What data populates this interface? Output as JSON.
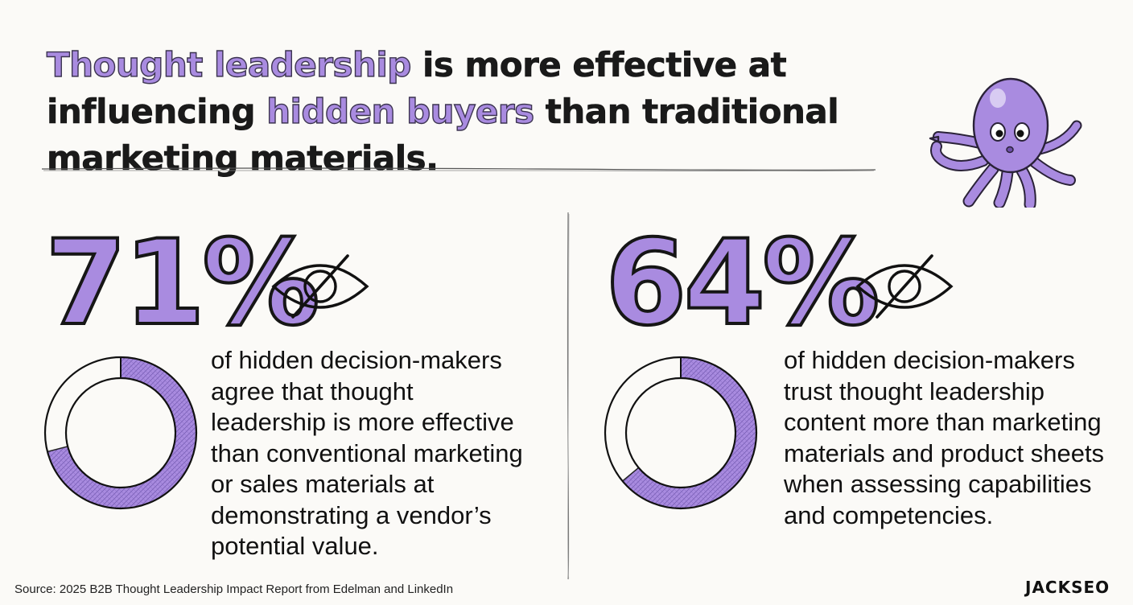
{
  "headline": {
    "part1": "Thought leadership",
    "part2": " is more effective at influencing ",
    "part3": "hidden buyers",
    "part4": " than traditional marketing materials."
  },
  "stats": [
    {
      "value": "71%",
      "fraction": 0.71,
      "icon": "eye-slash-icon",
      "description": "of hidden decision-makers\nagree that thought\nleadership is more effective\nthan conventional marketing\nor sales materials at\ndemonstrating a vendor’s\npotential value."
    },
    {
      "value": "64%",
      "fraction": 0.64,
      "icon": "eye-slash-icon",
      "description": "of hidden decision-makers\ntrust thought leadership\ncontent more than marketing\nmaterials and product sheets\nwhen assessing capabilities\nand competencies."
    }
  ],
  "footer": {
    "source": "Source: 2025 B2B Thought Leadership Impact Report from Edelman and LinkedIn",
    "brand": "JACKSEO"
  },
  "colors": {
    "accent": "#a98be0",
    "ink": "#111111",
    "background": "#fbfaf7"
  }
}
